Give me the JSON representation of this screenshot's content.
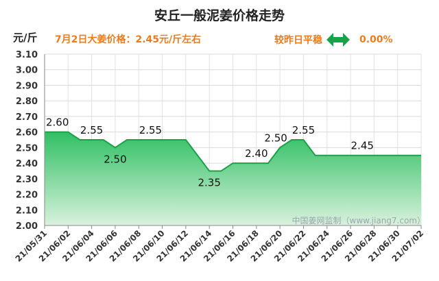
{
  "header": {
    "title": "安丘一般泥姜价格走势",
    "unit": "元/斤",
    "price_note": "7月2日大姜价格：2.45元/斤左右",
    "change_text": "较昨日平稳",
    "change_pct": "0.00%"
  },
  "watermark": "中国姜网监制（www.jiang7.com）",
  "colors": {
    "accent": "#e87c1e",
    "line": "#1ea04a",
    "fill_top": "#2fbf62",
    "fill_bottom": "#d9f2dd",
    "arrow": "#16a34a"
  },
  "chart_data": {
    "type": "area",
    "title": "安丘一般泥姜价格走势",
    "ylabel": "元/斤",
    "ylim": [
      2.0,
      3.1
    ],
    "y_ticks": [
      "2.00",
      "2.10",
      "2.20",
      "2.30",
      "2.40",
      "2.50",
      "2.60",
      "2.70",
      "2.80",
      "2.90",
      "3.00",
      "3.10"
    ],
    "x_tick_labels": [
      "21/05/31",
      "21/06/02",
      "21/06/04",
      "21/06/06",
      "21/06/08",
      "21/06/10",
      "21/06/12",
      "21/06/14",
      "21/06/16",
      "21/06/18",
      "21/06/20",
      "21/06/22",
      "21/06/24",
      "21/06/26",
      "21/06/28",
      "21/06/30",
      "21/07/02"
    ],
    "x": [
      "21/05/31",
      "21/06/01",
      "21/06/02",
      "21/06/03",
      "21/06/04",
      "21/06/05",
      "21/06/06",
      "21/06/07",
      "21/06/08",
      "21/06/09",
      "21/06/10",
      "21/06/11",
      "21/06/12",
      "21/06/13",
      "21/06/14",
      "21/06/15",
      "21/06/16",
      "21/06/17",
      "21/06/18",
      "21/06/19",
      "21/06/20",
      "21/06/21",
      "21/06/22",
      "21/06/23",
      "21/06/24",
      "21/06/25",
      "21/06/26",
      "21/06/27",
      "21/06/28",
      "21/06/29",
      "21/06/30",
      "21/07/01",
      "21/07/02"
    ],
    "values": [
      2.6,
      2.6,
      2.6,
      2.55,
      2.55,
      2.55,
      2.5,
      2.55,
      2.55,
      2.55,
      2.55,
      2.55,
      2.55,
      2.45,
      2.35,
      2.35,
      2.4,
      2.4,
      2.4,
      2.4,
      2.5,
      2.55,
      2.55,
      2.45,
      2.45,
      2.45,
      2.45,
      2.45,
      2.45,
      2.45,
      2.45,
      2.45,
      2.45
    ],
    "annotations": [
      {
        "index": 0,
        "text": "2.60",
        "pos": "above"
      },
      {
        "index": 4,
        "text": "2.55",
        "pos": "above"
      },
      {
        "index": 6,
        "text": "2.50",
        "pos": "below"
      },
      {
        "index": 9,
        "text": "2.55",
        "pos": "above"
      },
      {
        "index": 14,
        "text": "2.35",
        "pos": "below"
      },
      {
        "index": 18,
        "text": "2.40",
        "pos": "above"
      },
      {
        "index": 20,
        "text": "2.50",
        "pos": "above-left"
      },
      {
        "index": 22,
        "text": "2.55",
        "pos": "above"
      },
      {
        "index": 27,
        "text": "2.45",
        "pos": "above"
      }
    ],
    "grid": true,
    "legend": "none"
  }
}
